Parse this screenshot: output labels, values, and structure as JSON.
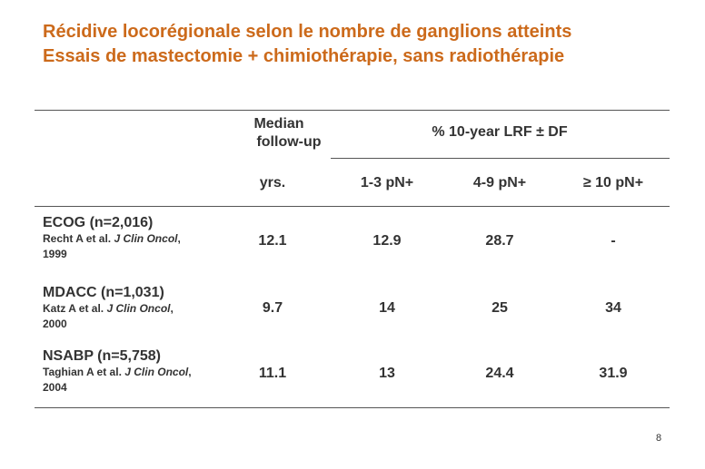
{
  "title": {
    "line1": "Récidive locorégionale selon le nombre de ganglions atteints",
    "line2": "Essais de mastectomie + chimiothérapie, sans radiothérapie"
  },
  "table": {
    "header": {
      "median_line1": "Median",
      "median_line2": "follow-up",
      "group_label": "% 10-year LRF ± DF",
      "units": "yrs.",
      "columns": [
        "1-3 pN+",
        "4-9 pN+",
        "≥ 10 pN+"
      ]
    },
    "rows": [
      {
        "study": "ECOG (n=2,016)",
        "ref_author": "Recht A et al. ",
        "ref_journal": "J Clin Oncol",
        "ref_year": ", 1999",
        "median": "12.1",
        "values": [
          "12.9",
          "28.7",
          "-"
        ]
      },
      {
        "study": "MDACC (n=1,031)",
        "ref_author": "Katz A et al. ",
        "ref_journal": "J Clin Oncol",
        "ref_year": ", 2000",
        "median": "9.7",
        "values": [
          "14",
          "25",
          "34"
        ]
      },
      {
        "study": "NSABP (n=5,758)",
        "ref_author": "Taghian A et al. ",
        "ref_journal": "J Clin Oncol",
        "ref_year": ", 2004",
        "median": "11.1",
        "values": [
          "13",
          "24.4",
          "31.9"
        ]
      }
    ]
  },
  "page_number": "8",
  "colors": {
    "title": "#cc6a1b",
    "text": "#333333",
    "rules": "#555555"
  }
}
